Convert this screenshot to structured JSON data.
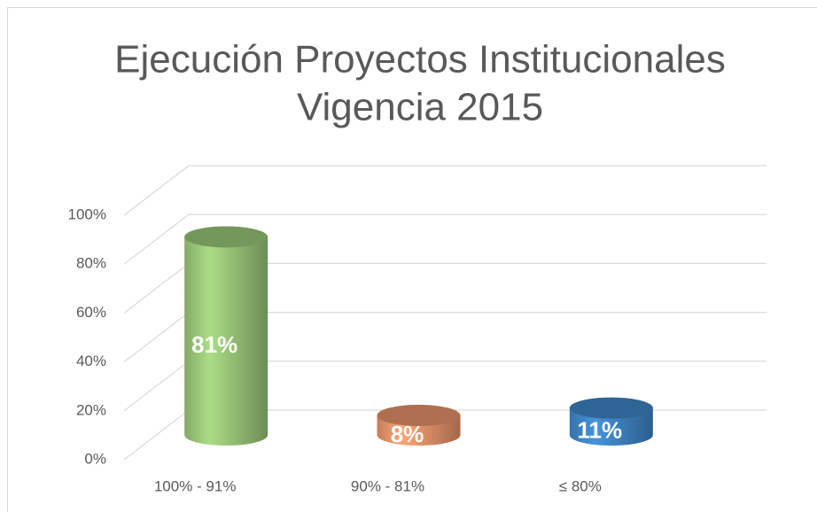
{
  "chart_data": {
    "type": "bar3d",
    "title": [
      "Ejecución Proyectos Institucionales",
      "Vigencia 2015"
    ],
    "categories": [
      "100% - 91%",
      "90% - 81%",
      "≤ 80%"
    ],
    "values": [
      81,
      8,
      11
    ],
    "value_labels": [
      "81%",
      "8%",
      "11%"
    ],
    "colors": [
      "#9bc97a",
      "#e8956a",
      "#3f86c8"
    ],
    "ylim": [
      0,
      100
    ],
    "yticks": [
      {
        "value": 0,
        "label": "0%"
      },
      {
        "value": 20,
        "label": "20%"
      },
      {
        "value": 40,
        "label": "40%"
      },
      {
        "value": 60,
        "label": "60%"
      },
      {
        "value": 80,
        "label": "80%"
      },
      {
        "value": 100,
        "label": "100%"
      }
    ],
    "grid": true
  }
}
